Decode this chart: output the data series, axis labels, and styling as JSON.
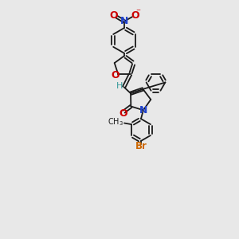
{
  "bg_color": "#e8e8e8",
  "bond_color": "#1a1a1a",
  "atom_colors": {
    "O": "#cc0000",
    "N_amine": "#2244cc",
    "N_nitro": "#2244cc",
    "Br": "#cc6600",
    "H": "#339999",
    "C": "#1a1a1a"
  },
  "font_size": 7.5,
  "linewidth": 1.3
}
